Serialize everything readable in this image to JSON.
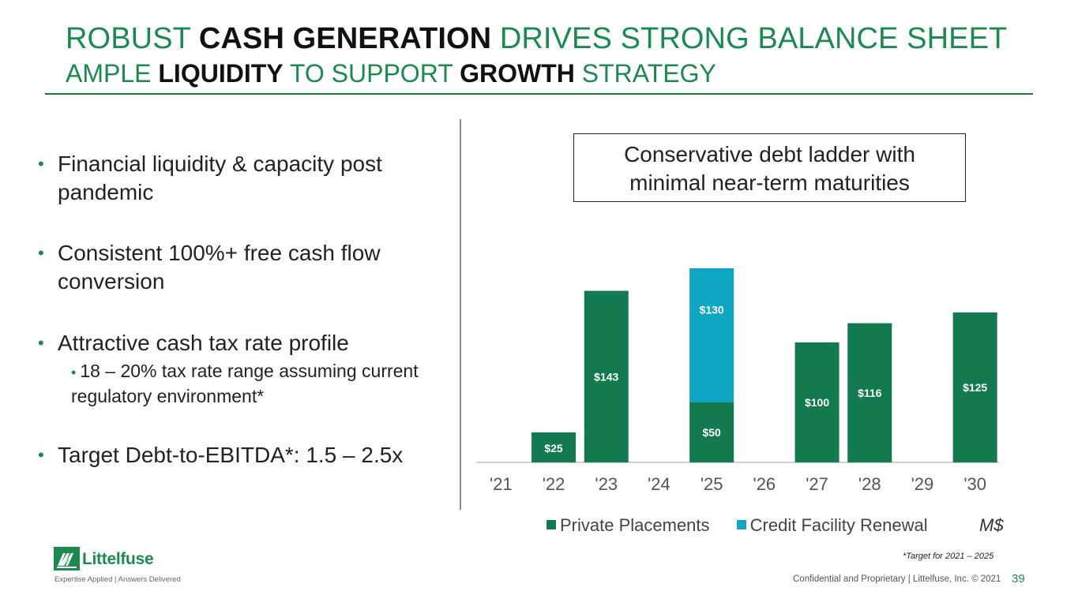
{
  "header": {
    "title_line1": [
      {
        "text": "ROBUST ",
        "bold": false
      },
      {
        "text": "CASH GENERATION",
        "bold": true
      },
      {
        "text": " DRIVES STRONG BALANCE SHEET",
        "bold": false
      }
    ],
    "title_line2": [
      {
        "text": "AMPLE ",
        "bold": false
      },
      {
        "text": "LIQUIDITY",
        "bold": true
      },
      {
        "text": " TO SUPPORT ",
        "bold": false
      },
      {
        "text": "GROWTH",
        "bold": true
      },
      {
        "text": " STRATEGY",
        "bold": false
      }
    ]
  },
  "bullets": [
    {
      "text": "Financial liquidity & capacity post pandemic"
    },
    {
      "text": "Consistent 100%+ free cash flow conversion"
    },
    {
      "text": "Attractive cash tax rate profile"
    },
    {
      "text": "Target Debt-to-EBITDA*: 1.5 – 2.5x"
    }
  ],
  "sub_bullet": {
    "text": "18 – 20% tax rate range assuming current regulatory environment*"
  },
  "callout": {
    "line1": "Conservative debt ladder with",
    "line2": "minimal near-term maturities"
  },
  "chart_data": {
    "type": "bar",
    "stacked": true,
    "categories": [
      "'21",
      "'22",
      "'23",
      "'24",
      "'25",
      "'26",
      "'27",
      "'28",
      "'29",
      "'30"
    ],
    "series": [
      {
        "name": "Private Placements",
        "color": "#137a4f",
        "values": [
          0,
          25,
          143,
          0,
          50,
          0,
          100,
          116,
          0,
          125
        ],
        "labels": [
          "",
          "$25",
          "$143",
          "",
          "$50",
          "",
          "$100",
          "$116",
          "",
          "$125"
        ]
      },
      {
        "name": "Credit Facility Renewal",
        "color": "#0fa6c4",
        "values": [
          0,
          0,
          0,
          0,
          130,
          0,
          0,
          0,
          0,
          0
        ],
        "labels": [
          "",
          "",
          "",
          "",
          "$130",
          "",
          "",
          "",
          "",
          ""
        ]
      }
    ],
    "unit": "M$",
    "ylim": [
      0,
      180
    ]
  },
  "footnote": "*Target for 2021 – 2025",
  "footer": {
    "confidential": "Confidential and Proprietary | Littelfuse, Inc. © 2021",
    "page_number": "39"
  },
  "logo": {
    "wordmark": "Littelfuse",
    "tagline": "Expertise Applied | Answers Delivered"
  }
}
